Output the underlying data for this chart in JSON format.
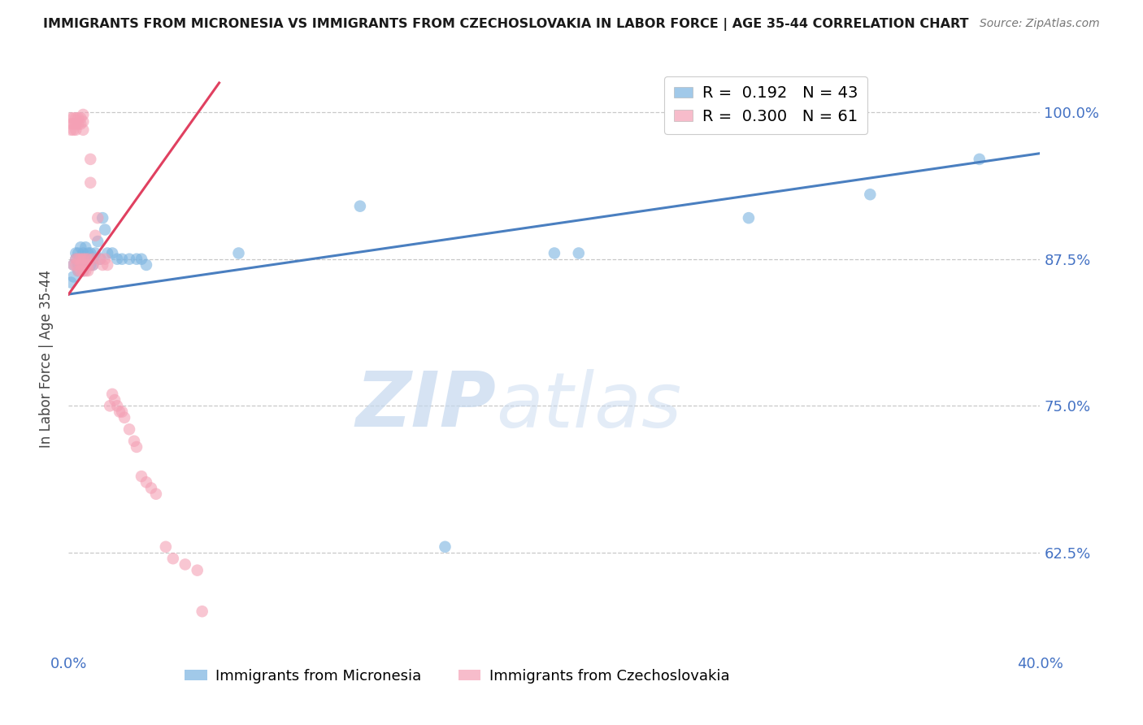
{
  "title": "IMMIGRANTS FROM MICRONESIA VS IMMIGRANTS FROM CZECHOSLOVAKIA IN LABOR FORCE | AGE 35-44 CORRELATION CHART",
  "source": "Source: ZipAtlas.com",
  "ylabel": "In Labor Force | Age 35-44",
  "xlim": [
    0.0,
    0.4
  ],
  "ylim": [
    0.54,
    1.04
  ],
  "yticks": [
    0.625,
    0.75,
    0.875,
    1.0
  ],
  "ytick_labels": [
    "62.5%",
    "75.0%",
    "87.5%",
    "100.0%"
  ],
  "xticks": [
    0.0,
    0.05,
    0.1,
    0.15,
    0.2,
    0.25,
    0.3,
    0.35,
    0.4
  ],
  "xtick_labels": [
    "0.0%",
    "",
    "",
    "",
    "",
    "",
    "",
    "",
    "40.0%"
  ],
  "legend_blue_r": "0.192",
  "legend_blue_n": "43",
  "legend_pink_r": "0.300",
  "legend_pink_n": "61",
  "blue_color": "#7ab3e0",
  "pink_color": "#f4a0b5",
  "blue_line_color": "#4a7fc0",
  "pink_line_color": "#e04060",
  "watermark_zip": "ZIP",
  "watermark_atlas": "atlas",
  "blue_line_x": [
    0.0,
    0.4
  ],
  "blue_line_y": [
    0.845,
    0.965
  ],
  "pink_line_x": [
    0.0,
    0.062
  ],
  "pink_line_y": [
    0.845,
    1.025
  ],
  "blue_scatter_x": [
    0.001,
    0.002,
    0.002,
    0.003,
    0.003,
    0.004,
    0.004,
    0.004,
    0.005,
    0.005,
    0.005,
    0.006,
    0.006,
    0.006,
    0.007,
    0.007,
    0.008,
    0.008,
    0.009,
    0.009,
    0.01,
    0.01,
    0.011,
    0.012,
    0.013,
    0.014,
    0.015,
    0.016,
    0.018,
    0.02,
    0.022,
    0.025,
    0.028,
    0.03,
    0.032,
    0.07,
    0.12,
    0.155,
    0.2,
    0.21,
    0.28,
    0.33,
    0.375
  ],
  "blue_scatter_y": [
    0.855,
    0.87,
    0.86,
    0.88,
    0.875,
    0.87,
    0.865,
    0.88,
    0.87,
    0.885,
    0.875,
    0.865,
    0.88,
    0.875,
    0.87,
    0.885,
    0.875,
    0.88,
    0.87,
    0.88,
    0.875,
    0.87,
    0.88,
    0.89,
    0.875,
    0.91,
    0.9,
    0.88,
    0.88,
    0.875,
    0.875,
    0.875,
    0.875,
    0.875,
    0.87,
    0.88,
    0.92,
    0.63,
    0.88,
    0.88,
    0.91,
    0.93,
    0.96
  ],
  "pink_scatter_x": [
    0.001,
    0.001,
    0.001,
    0.002,
    0.002,
    0.002,
    0.002,
    0.003,
    0.003,
    0.003,
    0.003,
    0.003,
    0.004,
    0.004,
    0.004,
    0.004,
    0.005,
    0.005,
    0.005,
    0.005,
    0.005,
    0.006,
    0.006,
    0.006,
    0.006,
    0.006,
    0.007,
    0.007,
    0.007,
    0.008,
    0.008,
    0.008,
    0.009,
    0.009,
    0.01,
    0.01,
    0.011,
    0.012,
    0.013,
    0.014,
    0.015,
    0.016,
    0.017,
    0.018,
    0.019,
    0.02,
    0.021,
    0.022,
    0.023,
    0.025,
    0.027,
    0.028,
    0.03,
    0.032,
    0.034,
    0.036,
    0.04,
    0.043,
    0.048,
    0.053,
    0.055
  ],
  "pink_scatter_y": [
    0.995,
    0.99,
    0.985,
    0.995,
    0.99,
    0.985,
    0.87,
    0.995,
    0.99,
    0.985,
    0.875,
    0.87,
    0.995,
    0.99,
    0.875,
    0.865,
    0.995,
    0.99,
    0.875,
    0.87,
    0.865,
    0.998,
    0.992,
    0.985,
    0.875,
    0.865,
    0.875,
    0.87,
    0.865,
    0.875,
    0.87,
    0.865,
    0.96,
    0.94,
    0.875,
    0.87,
    0.895,
    0.91,
    0.875,
    0.87,
    0.875,
    0.87,
    0.75,
    0.76,
    0.755,
    0.75,
    0.745,
    0.745,
    0.74,
    0.73,
    0.72,
    0.715,
    0.69,
    0.685,
    0.68,
    0.675,
    0.63,
    0.62,
    0.615,
    0.61,
    0.575
  ],
  "axis_label_color": "#4472c4",
  "tick_label_color": "#4472c4",
  "background_color": "#ffffff",
  "grid_color": "#c8c8c8"
}
